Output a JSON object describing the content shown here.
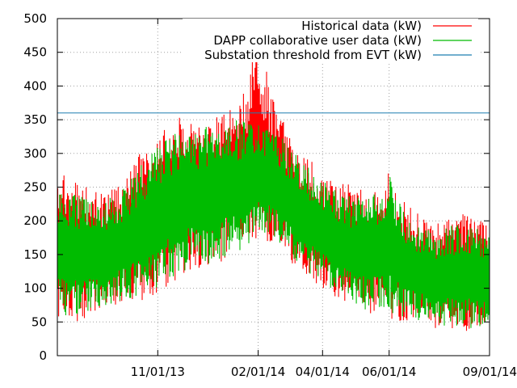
{
  "chart_data": {
    "type": "line",
    "title": "",
    "xlabel": "",
    "ylabel": "",
    "ylim": [
      0,
      500
    ],
    "yticks": [
      0,
      50,
      100,
      150,
      200,
      250,
      300,
      350,
      400,
      450,
      500
    ],
    "xlim": [
      "2013-08-01",
      "2014-09-01"
    ],
    "xticks": [
      {
        "date": "2013-11-01",
        "label": "11/01/13"
      },
      {
        "date": "2014-02-01",
        "label": "02/01/14"
      },
      {
        "date": "2014-04-01",
        "label": "04/01/14"
      },
      {
        "date": "2014-06-01",
        "label": "06/01/14"
      },
      {
        "date": "2014-09-01",
        "label": "09/01/14"
      }
    ],
    "grid": true,
    "legend_position": "top-right",
    "series": [
      {
        "name": "Historical data (kW)",
        "color": "#ff0000",
        "style": "daily min/max envelope",
        "x": [
          "2013-08-01",
          "2013-08-15",
          "2013-09-01",
          "2013-09-15",
          "2013-10-01",
          "2013-10-15",
          "2013-11-01",
          "2013-11-15",
          "2013-12-01",
          "2013-12-15",
          "2014-01-01",
          "2014-01-15",
          "2014-02-01",
          "2014-02-15",
          "2014-03-01",
          "2014-03-15",
          "2014-04-01",
          "2014-04-15",
          "2014-05-01",
          "2014-05-15",
          "2014-06-01",
          "2014-06-15",
          "2014-07-01",
          "2014-07-15",
          "2014-08-01",
          "2014-08-15",
          "2014-09-01"
        ],
        "low": [
          55,
          48,
          60,
          70,
          75,
          80,
          90,
          110,
          125,
          130,
          140,
          145,
          175,
          165,
          140,
          120,
          100,
          85,
          70,
          60,
          55,
          50,
          45,
          40,
          38,
          35,
          40
        ],
        "high": [
          275,
          260,
          250,
          240,
          260,
          300,
          330,
          350,
          360,
          355,
          360,
          380,
          475,
          380,
          330,
          300,
          280,
          260,
          250,
          250,
          275,
          230,
          205,
          200,
          210,
          210,
          195
        ]
      },
      {
        "name": "DAPP collaborative user data (kW)",
        "color": "#00bb00",
        "style": "daily min/max envelope",
        "x": [
          "2013-08-01",
          "2013-08-15",
          "2013-09-01",
          "2013-09-15",
          "2013-10-01",
          "2013-10-15",
          "2013-11-01",
          "2013-11-15",
          "2013-12-01",
          "2013-12-15",
          "2014-01-01",
          "2014-01-15",
          "2014-02-01",
          "2014-02-15",
          "2014-03-01",
          "2014-03-15",
          "2014-04-01",
          "2014-04-15",
          "2014-05-01",
          "2014-05-15",
          "2014-06-01",
          "2014-06-15",
          "2014-07-01",
          "2014-07-15",
          "2014-08-01",
          "2014-08-15",
          "2014-09-01"
        ],
        "low": [
          60,
          55,
          65,
          75,
          80,
          90,
          100,
          115,
          130,
          135,
          145,
          150,
          180,
          170,
          145,
          125,
          105,
          90,
          75,
          65,
          60,
          55,
          50,
          45,
          42,
          40,
          45
        ],
        "high": [
          245,
          240,
          235,
          230,
          250,
          280,
          310,
          330,
          335,
          340,
          345,
          350,
          350,
          340,
          310,
          285,
          260,
          245,
          235,
          235,
          270,
          215,
          190,
          185,
          195,
          195,
          175
        ]
      },
      {
        "name": "Substation threshold from EVT (kW)",
        "color": "#1f7fb0",
        "style": "constant line",
        "x": [
          "2013-08-01",
          "2014-09-01"
        ],
        "values": [
          360,
          360
        ]
      }
    ]
  }
}
